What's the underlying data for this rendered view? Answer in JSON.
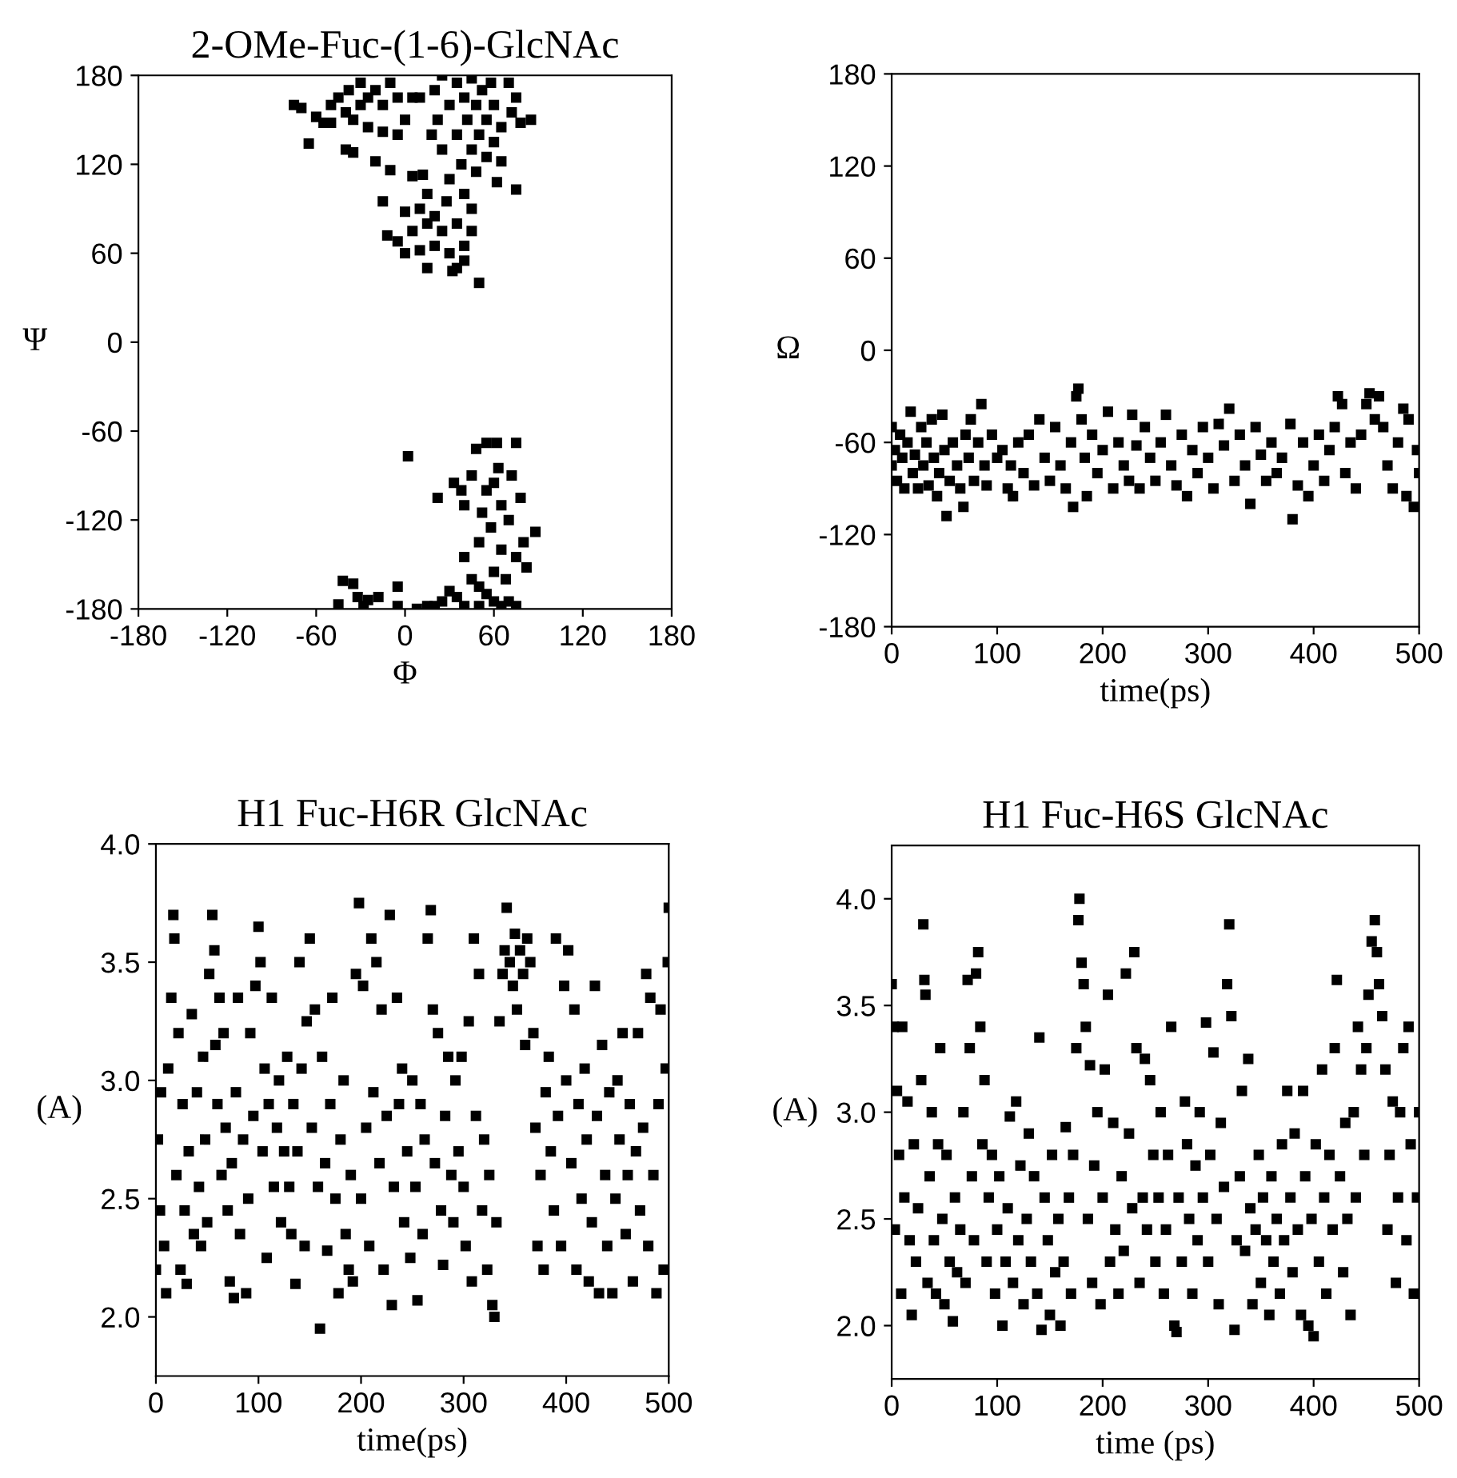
{
  "chart_data": [
    {
      "type": "scatter",
      "title": "2-OMe-Fuc-(1-6)-GlcNAc",
      "xlabel": "Φ",
      "ylabel": "Ψ",
      "xlim": [
        -180,
        180
      ],
      "ylim": [
        -180,
        180
      ],
      "xticks": [
        -180,
        -120,
        -60,
        0,
        60,
        120,
        180
      ],
      "yticks": [
        -180,
        -120,
        -60,
        0,
        60,
        120,
        180
      ],
      "marker": "square",
      "grid": false,
      "legend": false,
      "series": [
        {
          "color": "#000000",
          "x": [
            -75,
            -70,
            -65,
            -60,
            -55,
            -50,
            -50,
            -45,
            -40,
            -40,
            -38,
            -35,
            -35,
            -30,
            -30,
            -25,
            -25,
            -20,
            -20,
            -15,
            -15,
            -15,
            -12,
            -10,
            -10,
            -5,
            -5,
            -5,
            0,
            0,
            0,
            5,
            5,
            5,
            10,
            10,
            10,
            12,
            15,
            15,
            15,
            18,
            20,
            20,
            20,
            22,
            25,
            25,
            25,
            28,
            30,
            30,
            30,
            32,
            35,
            35,
            35,
            35,
            38,
            40,
            40,
            40,
            42,
            45,
            45,
            45,
            48,
            48,
            50,
            50,
            52,
            55,
            55,
            58,
            60,
            60,
            62,
            65,
            65,
            70,
            72,
            75,
            75,
            78,
            85,
            45,
            40,
            2,
            22,
            33,
            38,
            40,
            45,
            48,
            50,
            52,
            55,
            55,
            58,
            60,
            60,
            62,
            63,
            65,
            65,
            68,
            70,
            72,
            75,
            75,
            78,
            80,
            82,
            88,
            40,
            45,
            50,
            55,
            60,
            65,
            70,
            75,
            30,
            35,
            25,
            15,
            8,
            20,
            40,
            50,
            -42,
            -35,
            -32,
            -25,
            -18,
            -5,
            -5,
            -45,
            -28
          ],
          "values": [
            160,
            158,
            134,
            152,
            148,
            148,
            160,
            165,
            155,
            130,
            170,
            150,
            128,
            160,
            175,
            165,
            145,
            170,
            122,
            160,
            142,
            95,
            72,
            175,
            116,
            165,
            140,
            68,
            150,
            88,
            60,
            165,
            112,
            75,
            165,
            90,
            62,
            113,
            100,
            80,
            50,
            140,
            170,
            65,
            85,
            150,
            180,
            130,
            75,
            95,
            160,
            110,
            60,
            48,
            175,
            140,
            80,
            50,
            120,
            165,
            100,
            65,
            150,
            178,
            130,
            90,
            160,
            115,
            140,
            40,
            170,
            150,
            125,
            175,
            160,
            135,
            108,
            145,
            122,
            175,
            155,
            165,
            103,
            148,
            150,
            75,
            55,
            -77,
            -105,
            -95,
            -100,
            -110,
            -90,
            -72,
            -135,
            -115,
            -68,
            -100,
            -125,
            -95,
            -155,
            -68,
            -85,
            -110,
            -140,
            -160,
            -120,
            -90,
            -68,
            -145,
            -105,
            -135,
            -152,
            -128,
            -145,
            -160,
            -165,
            -170,
            -175,
            -178,
            -175,
            -178,
            -168,
            -172,
            -175,
            -178,
            -180,
            -178,
            -178,
            -178,
            -161,
            -163,
            -172,
            -174,
            -172,
            -165,
            -178,
            -177,
            -178
          ]
        }
      ]
    },
    {
      "type": "scatter",
      "xlabel": "time(ps)",
      "ylabel": "Ω",
      "xlim": [
        0,
        500
      ],
      "ylim": [
        -180,
        180
      ],
      "xticks": [
        0,
        100,
        200,
        300,
        400,
        500
      ],
      "yticks": [
        -180,
        -120,
        -60,
        0,
        60,
        120,
        180
      ],
      "marker": "square",
      "grid": false,
      "legend": false,
      "series": [
        {
          "color": "#000000",
          "x": [
            0,
            0,
            3,
            5,
            8,
            10,
            12,
            15,
            18,
            20,
            22,
            25,
            28,
            30,
            33,
            35,
            38,
            40,
            43,
            45,
            48,
            50,
            52,
            55,
            58,
            62,
            65,
            68,
            70,
            73,
            75,
            78,
            82,
            85,
            88,
            90,
            95,
            100,
            105,
            110,
            113,
            115,
            120,
            125,
            130,
            135,
            140,
            145,
            150,
            155,
            160,
            165,
            170,
            172,
            175,
            177,
            180,
            183,
            185,
            190,
            195,
            200,
            205,
            210,
            215,
            220,
            225,
            228,
            232,
            235,
            240,
            245,
            250,
            255,
            260,
            265,
            270,
            275,
            280,
            285,
            290,
            295,
            300,
            305,
            310,
            315,
            320,
            325,
            330,
            335,
            340,
            345,
            350,
            355,
            360,
            365,
            370,
            378,
            380,
            385,
            390,
            395,
            400,
            405,
            410,
            415,
            420,
            423,
            427,
            430,
            435,
            440,
            445,
            450,
            453,
            458,
            462,
            466,
            470,
            475,
            480,
            485,
            488,
            490,
            495,
            498,
            500
          ],
          "values": [
            -50,
            -75,
            -65,
            -85,
            -55,
            -70,
            -90,
            -60,
            -40,
            -80,
            -68,
            -90,
            -50,
            -75,
            -60,
            -88,
            -45,
            -70,
            -95,
            -80,
            -42,
            -65,
            -108,
            -85,
            -60,
            -75,
            -90,
            -102,
            -55,
            -70,
            -45,
            -85,
            -60,
            -35,
            -75,
            -88,
            -55,
            -70,
            -65,
            -90,
            -75,
            -95,
            -60,
            -80,
            -55,
            -88,
            -45,
            -70,
            -85,
            -50,
            -75,
            -90,
            -60,
            -102,
            -30,
            -25,
            -45,
            -70,
            -95,
            -55,
            -80,
            -65,
            -40,
            -90,
            -60,
            -75,
            -85,
            -42,
            -62,
            -90,
            -50,
            -70,
            -85,
            -60,
            -42,
            -75,
            -88,
            -55,
            -95,
            -65,
            -80,
            -50,
            -70,
            -90,
            -48,
            -62,
            -38,
            -85,
            -55,
            -75,
            -100,
            -50,
            -68,
            -85,
            -60,
            -80,
            -70,
            -48,
            -110,
            -88,
            -60,
            -95,
            -75,
            -55,
            -85,
            -65,
            -50,
            -30,
            -35,
            -80,
            -60,
            -90,
            -55,
            -35,
            -28,
            -45,
            -30,
            -50,
            -75,
            -90,
            -60,
            -38,
            -95,
            -45,
            -102,
            -65,
            -80
          ]
        }
      ]
    },
    {
      "type": "scatter",
      "title": "H1 Fuc-H6R GlcNAc",
      "xlabel": "time(ps)",
      "ylabel": "(A)",
      "xlim": [
        0,
        500
      ],
      "ylim": [
        1.75,
        4.0
      ],
      "xticks": [
        0,
        100,
        200,
        300,
        400,
        500
      ],
      "yticks": [
        {
          "value": 2,
          "label": "2.0"
        },
        {
          "value": 2.5,
          "label": "2.5"
        },
        {
          "value": 3,
          "label": "3.0"
        },
        {
          "value": 3.5,
          "label": "3.5"
        },
        {
          "value": 4,
          "label": "4.0"
        }
      ],
      "marker": "square",
      "grid": false,
      "legend": false,
      "series": [
        {
          "color": "#000000",
          "x": [
            0,
            2,
            4,
            5,
            8,
            10,
            12,
            15,
            17,
            18,
            20,
            22,
            24,
            26,
            28,
            30,
            32,
            35,
            37,
            40,
            42,
            44,
            46,
            48,
            50,
            52,
            55,
            57,
            58,
            60,
            62,
            64,
            66,
            68,
            70,
            72,
            74,
            76,
            78,
            80,
            82,
            85,
            88,
            90,
            92,
            95,
            97,
            100,
            102,
            104,
            106,
            108,
            110,
            113,
            115,
            118,
            120,
            122,
            125,
            128,
            130,
            132,
            134,
            136,
            138,
            140,
            142,
            145,
            147,
            150,
            152,
            155,
            158,
            160,
            162,
            165,
            167,
            170,
            172,
            175,
            178,
            180,
            183,
            185,
            188,
            190,
            192,
            195,
            198,
            200,
            202,
            205,
            208,
            210,
            212,
            215,
            218,
            220,
            222,
            225,
            228,
            230,
            232,
            235,
            237,
            240,
            242,
            245,
            248,
            250,
            253,
            255,
            258,
            260,
            262,
            265,
            268,
            270,
            272,
            275,
            278,
            280,
            282,
            285,
            288,
            290,
            292,
            295,
            298,
            300,
            302,
            305,
            308,
            310,
            312,
            315,
            318,
            320,
            323,
            325,
            328,
            330,
            332,
            335,
            338,
            340,
            342,
            345,
            348,
            350,
            352,
            355,
            358,
            360,
            362,
            365,
            368,
            370,
            372,
            375,
            378,
            380,
            383,
            385,
            388,
            390,
            392,
            395,
            398,
            400,
            402,
            405,
            408,
            410,
            412,
            415,
            418,
            420,
            422,
            425,
            428,
            430,
            432,
            435,
            438,
            440,
            442,
            445,
            448,
            450,
            452,
            455,
            458,
            460,
            462,
            465,
            468,
            470,
            472,
            475,
            478,
            480,
            482,
            485,
            488,
            490,
            492,
            495,
            497,
            499,
            500
          ],
          "values": [
            2.2,
            2.75,
            2.45,
            2.95,
            2.3,
            2.1,
            3.05,
            3.35,
            3.7,
            3.6,
            2.6,
            3.2,
            2.2,
            2.9,
            2.45,
            2.14,
            2.7,
            3.28,
            2.35,
            2.95,
            2.55,
            2.3,
            3.1,
            2.75,
            2.4,
            3.45,
            3.7,
            3.55,
            3.15,
            2.9,
            3.35,
            2.6,
            3.2,
            2.8,
            2.45,
            2.15,
            2.65,
            2.08,
            2.95,
            3.35,
            2.35,
            2.75,
            2.1,
            2.5,
            3.2,
            2.85,
            3.4,
            3.65,
            3.5,
            2.7,
            3.05,
            2.25,
            2.9,
            3.35,
            2.55,
            2.8,
            3.0,
            2.4,
            2.7,
            3.1,
            2.55,
            2.35,
            2.9,
            2.14,
            2.7,
            3.5,
            3.05,
            2.3,
            3.25,
            3.6,
            2.8,
            3.3,
            2.55,
            1.95,
            3.1,
            2.65,
            2.28,
            2.9,
            3.35,
            2.5,
            2.1,
            2.75,
            3.0,
            2.35,
            2.2,
            2.6,
            2.15,
            3.45,
            3.75,
            2.5,
            3.4,
            2.8,
            2.3,
            3.6,
            2.95,
            3.5,
            2.65,
            3.3,
            2.2,
            2.85,
            3.7,
            2.05,
            2.55,
            3.35,
            2.9,
            3.05,
            2.4,
            2.7,
            2.25,
            3.0,
            2.55,
            2.07,
            2.9,
            2.35,
            2.75,
            3.6,
            3.72,
            3.3,
            2.65,
            3.2,
            2.45,
            2.22,
            2.85,
            3.1,
            2.6,
            2.4,
            3.0,
            2.7,
            3.1,
            2.55,
            2.3,
            3.25,
            2.15,
            3.6,
            2.85,
            3.45,
            2.45,
            2.75,
            2.2,
            2.6,
            2.05,
            2.0,
            2.4,
            3.25,
            3.45,
            3.55,
            3.73,
            3.5,
            3.4,
            3.62,
            3.3,
            3.55,
            3.45,
            3.15,
            3.6,
            3.5,
            3.2,
            2.8,
            2.3,
            2.6,
            2.2,
            2.95,
            3.1,
            2.7,
            2.45,
            3.6,
            2.85,
            2.3,
            3.4,
            3.0,
            3.55,
            2.65,
            3.3,
            2.2,
            2.9,
            2.5,
            3.05,
            2.75,
            2.15,
            2.4,
            3.4,
            2.85,
            2.1,
            3.15,
            2.6,
            2.3,
            2.95,
            2.1,
            2.5,
            3.0,
            2.75,
            3.2,
            2.35,
            2.6,
            2.9,
            2.15,
            2.7,
            3.2,
            2.45,
            2.8,
            3.45,
            2.3,
            3.35,
            2.6,
            2.1,
            2.9,
            3.3,
            2.2,
            3.05,
            3.5,
            3.73
          ]
        }
      ]
    },
    {
      "type": "scatter",
      "title": "H1 Fuc-H6S GlcNAc",
      "xlabel": "time (ps)",
      "ylabel": "(A)",
      "xlim": [
        0,
        500
      ],
      "ylim": [
        1.75,
        4.25
      ],
      "xticks": [
        0,
        100,
        200,
        300,
        400,
        500
      ],
      "yticks": [
        {
          "value": 2,
          "label": "2.0"
        },
        {
          "value": 2.5,
          "label": "2.5"
        },
        {
          "value": 3,
          "label": "3.0"
        },
        {
          "value": 3.5,
          "label": "3.5"
        },
        {
          "value": 4,
          "label": "4.0"
        }
      ],
      "marker": "square",
      "grid": false,
      "legend": false,
      "series": [
        {
          "color": "#000000",
          "x": [
            0,
            2,
            3,
            5,
            7,
            9,
            10,
            12,
            15,
            17,
            19,
            21,
            23,
            25,
            28,
            30,
            31,
            32,
            34,
            36,
            38,
            40,
            42,
            44,
            46,
            48,
            50,
            52,
            55,
            58,
            60,
            62,
            65,
            68,
            70,
            72,
            74,
            76,
            78,
            80,
            82,
            84,
            86,
            88,
            90,
            92,
            95,
            98,
            100,
            102,
            105,
            108,
            110,
            112,
            115,
            118,
            120,
            122,
            125,
            128,
            130,
            132,
            135,
            138,
            140,
            142,
            145,
            148,
            150,
            152,
            155,
            158,
            160,
            163,
            165,
            168,
            170,
            172,
            175,
            177,
            178,
            180,
            182,
            184,
            186,
            188,
            190,
            192,
            195,
            198,
            200,
            202,
            205,
            207,
            210,
            212,
            215,
            218,
            220,
            222,
            225,
            228,
            230,
            232,
            235,
            238,
            240,
            242,
            245,
            248,
            250,
            253,
            255,
            258,
            260,
            262,
            265,
            268,
            270,
            272,
            275,
            278,
            280,
            282,
            285,
            288,
            290,
            292,
            295,
            298,
            300,
            302,
            305,
            308,
            310,
            312,
            315,
            318,
            320,
            322,
            325,
            327,
            330,
            332,
            335,
            338,
            340,
            342,
            345,
            348,
            350,
            352,
            355,
            358,
            360,
            362,
            365,
            368,
            370,
            372,
            375,
            378,
            380,
            382,
            385,
            388,
            390,
            392,
            395,
            398,
            400,
            402,
            405,
            408,
            410,
            412,
            415,
            418,
            420,
            422,
            425,
            428,
            430,
            432,
            435,
            438,
            440,
            442,
            445,
            448,
            450,
            452,
            455,
            458,
            460,
            462,
            465,
            468,
            470,
            472,
            475,
            478,
            480,
            482,
            485,
            488,
            490,
            492,
            495,
            498,
            500
          ],
          "values": [
            3.6,
            3.4,
            2.45,
            3.1,
            2.8,
            2.15,
            3.4,
            2.6,
            3.05,
            2.4,
            2.05,
            2.85,
            2.3,
            2.55,
            3.15,
            3.88,
            3.62,
            3.55,
            2.2,
            2.7,
            3.0,
            2.4,
            2.15,
            2.85,
            3.3,
            2.5,
            2.1,
            2.8,
            2.3,
            2.02,
            2.6,
            2.25,
            2.45,
            3.0,
            2.2,
            3.62,
            3.3,
            2.7,
            2.4,
            3.65,
            3.75,
            3.4,
            2.85,
            3.15,
            2.3,
            2.6,
            2.8,
            2.15,
            2.45,
            2.7,
            2.0,
            2.3,
            2.55,
            2.98,
            2.2,
            3.05,
            2.4,
            2.75,
            2.1,
            2.5,
            2.9,
            2.3,
            2.7,
            2.15,
            3.35,
            1.98,
            2.6,
            2.4,
            2.05,
            2.8,
            2.25,
            2.5,
            2.0,
            2.3,
            2.93,
            2.6,
            2.15,
            2.8,
            3.3,
            3.9,
            4.0,
            3.7,
            3.6,
            3.4,
            2.5,
            3.22,
            2.2,
            2.75,
            3.0,
            2.1,
            2.6,
            3.2,
            3.55,
            2.3,
            2.95,
            2.45,
            2.15,
            2.7,
            2.35,
            3.65,
            2.9,
            2.55,
            3.75,
            3.3,
            2.2,
            2.6,
            3.25,
            2.45,
            3.15,
            2.8,
            2.3,
            2.6,
            3.0,
            2.15,
            2.45,
            2.8,
            3.4,
            2.0,
            1.97,
            2.6,
            2.3,
            3.05,
            2.85,
            2.5,
            2.15,
            2.75,
            2.4,
            3.0,
            2.6,
            3.42,
            2.3,
            2.8,
            3.28,
            2.5,
            2.1,
            2.95,
            2.65,
            3.6,
            3.88,
            3.45,
            1.98,
            2.4,
            2.7,
            3.1,
            2.35,
            3.25,
            2.55,
            2.1,
            2.45,
            2.8,
            2.2,
            2.6,
            2.4,
            2.05,
            2.7,
            2.3,
            2.5,
            2.15,
            2.85,
            2.4,
            3.1,
            2.6,
            2.25,
            2.9,
            2.45,
            2.05,
            3.1,
            2.7,
            2.0,
            2.5,
            1.95,
            2.85,
            2.3,
            3.2,
            2.6,
            2.15,
            2.8,
            2.45,
            3.3,
            3.62,
            2.7,
            2.25,
            2.95,
            2.5,
            2.05,
            3.0,
            2.6,
            3.4,
            3.2,
            2.8,
            3.3,
            3.55,
            3.8,
            3.9,
            3.75,
            3.6,
            3.45,
            3.2,
            2.45,
            2.8,
            3.05,
            2.2,
            2.6,
            3.0,
            3.3,
            2.4,
            3.4,
            2.85,
            2.15,
            2.6,
            3.0
          ]
        }
      ]
    }
  ]
}
